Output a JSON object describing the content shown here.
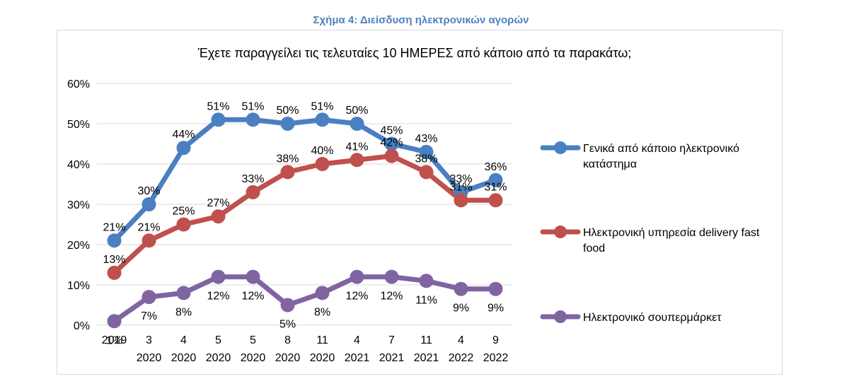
{
  "caption": "Σχήμα 4: Διείσδυση ηλεκτρονικών αγορών",
  "chart_data": {
    "type": "line",
    "title": "Έχετε παραγγείλει τις τελευταίες 10 ΗΜΕΡΕΣ από κάποιο από τα παρακάτω;",
    "xlabel": "",
    "ylabel": "",
    "ylim": [
      0,
      0.6
    ],
    "yticks": [
      "0%",
      "10%",
      "20%",
      "30%",
      "40%",
      "50%",
      "60%"
    ],
    "grid": true,
    "legend_position": "right",
    "categories": [
      [
        "2019"
      ],
      [
        "3",
        "2020"
      ],
      [
        "4",
        "2020"
      ],
      [
        "5",
        "2020"
      ],
      [
        "5",
        "2020"
      ],
      [
        "8",
        "2020"
      ],
      [
        "11",
        "2020"
      ],
      [
        "4",
        "2021"
      ],
      [
        "7",
        "2021"
      ],
      [
        "11",
        "2021"
      ],
      [
        "4",
        "2022"
      ],
      [
        "9",
        "2022"
      ]
    ],
    "series": [
      {
        "name": "Γενικά από κάποιο ηλεκτρονικό κατάστημα",
        "color": "#4a7fc1",
        "values": [
          0.21,
          0.3,
          0.44,
          0.51,
          0.51,
          0.5,
          0.51,
          0.5,
          0.45,
          0.43,
          0.33,
          0.36
        ],
        "labels": [
          "21%",
          "30%",
          "44%",
          "51%",
          "51%",
          "50%",
          "51%",
          "50%",
          "45%",
          "43%",
          "33%",
          "36%"
        ],
        "label_pos": "above"
      },
      {
        "name": "Ηλεκτρονική υπηρεσία delivery fast food",
        "color": "#c0504d",
        "values": [
          0.13,
          0.21,
          0.25,
          0.27,
          0.33,
          0.38,
          0.4,
          0.41,
          0.42,
          0.38,
          0.31,
          0.31
        ],
        "labels": [
          "13%",
          "21%",
          "25%",
          "27%",
          "33%",
          "38%",
          "40%",
          "41%",
          "42%",
          "38%",
          "31%",
          "31%"
        ],
        "label_pos": "above"
      },
      {
        "name": "Ηλεκτρονικό σουπερμάρκετ",
        "color": "#8064a2",
        "values": [
          0.01,
          0.07,
          0.08,
          0.12,
          0.12,
          0.05,
          0.08,
          0.12,
          0.12,
          0.11,
          0.09,
          0.09
        ],
        "labels": [
          "1%",
          "7%",
          "8%",
          "12%",
          "12%",
          "5%",
          "8%",
          "12%",
          "12%",
          "11%",
          "9%",
          "9%"
        ],
        "label_pos": "below"
      }
    ]
  }
}
